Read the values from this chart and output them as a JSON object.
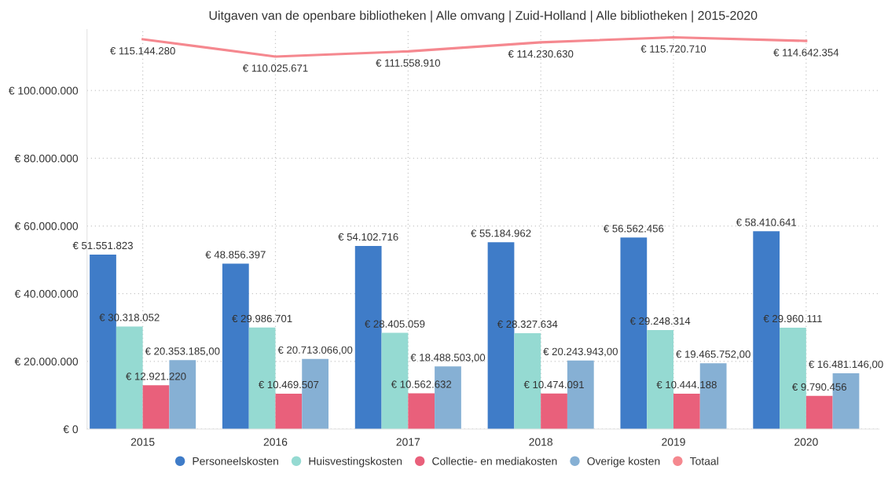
{
  "chart_data": {
    "type": "bar",
    "title": "Uitgaven van de openbare bibliotheken | Alle omvang | Zuid-Holland | Alle bibliotheken | 2015-2020",
    "categories": [
      "2015",
      "2016",
      "2017",
      "2018",
      "2019",
      "2020"
    ],
    "series": [
      {
        "name": "Personeelskosten",
        "color": "#3f7cc8",
        "values": [
          51551823,
          48856397,
          54102716,
          55184962,
          56562456,
          58410641
        ],
        "value_labels": [
          "€ 51.551.823",
          "€ 48.856.397",
          "€ 54.102.716",
          "€ 55.184.962",
          "€ 56.562.456",
          "€ 58.410.641"
        ]
      },
      {
        "name": "Huisvestingskosten",
        "color": "#95dad2",
        "values": [
          30318052,
          29986701,
          28405059,
          28327634,
          29248314,
          29960111
        ],
        "value_labels": [
          "€ 30.318.052",
          "€ 29.986.701",
          "€ 28.405.059",
          "€ 28.327.634",
          "€ 29.248.314",
          "€ 29.960.111"
        ]
      },
      {
        "name": "Collectie- en mediakosten",
        "color": "#e9607b",
        "values": [
          12921220,
          10469507,
          10562632,
          10474091,
          10444188,
          9790456
        ],
        "value_labels": [
          "€ 12.921.220",
          "€ 10.469.507",
          "€ 10.562.632",
          "€ 10.474.091",
          "€ 10.444.188",
          "€ 9.790.456"
        ]
      },
      {
        "name": "Overige kosten",
        "color": "#86b0d4",
        "values": [
          20353185,
          20713066,
          18488503,
          20243943,
          19465752,
          16481146
        ],
        "value_labels": [
          "€ 20.353.185,00",
          "€ 20.713.066,00",
          "€ 18.488.503,00",
          "€ 20.243.943,00",
          "€ 19.465.752,00",
          "€ 16.481.146,00"
        ]
      },
      {
        "name": "Totaal",
        "type": "line",
        "color": "#f5888f",
        "values": [
          115144280,
          110025671,
          111558910,
          114230630,
          115720710,
          114642354
        ],
        "value_labels": [
          "€ 115.144.280",
          "€ 110.025.671",
          "€ 111.558.910",
          "€ 114.230.630",
          "€ 115.720.710",
          "€ 114.642.354"
        ]
      }
    ],
    "ylim": [
      0,
      118000000
    ],
    "yticks": [
      {
        "value": 0,
        "label": "€ 0"
      },
      {
        "value": 20000000,
        "label": "€ 20.000.000"
      },
      {
        "value": 40000000,
        "label": "€ 40.000.000"
      },
      {
        "value": 60000000,
        "label": "€ 60.000.000"
      },
      {
        "value": 80000000,
        "label": "€ 80.000.000"
      },
      {
        "value": 100000000,
        "label": "€ 100.000.000"
      }
    ],
    "grid": true,
    "legend": "bottom",
    "line_style": "solid"
  }
}
